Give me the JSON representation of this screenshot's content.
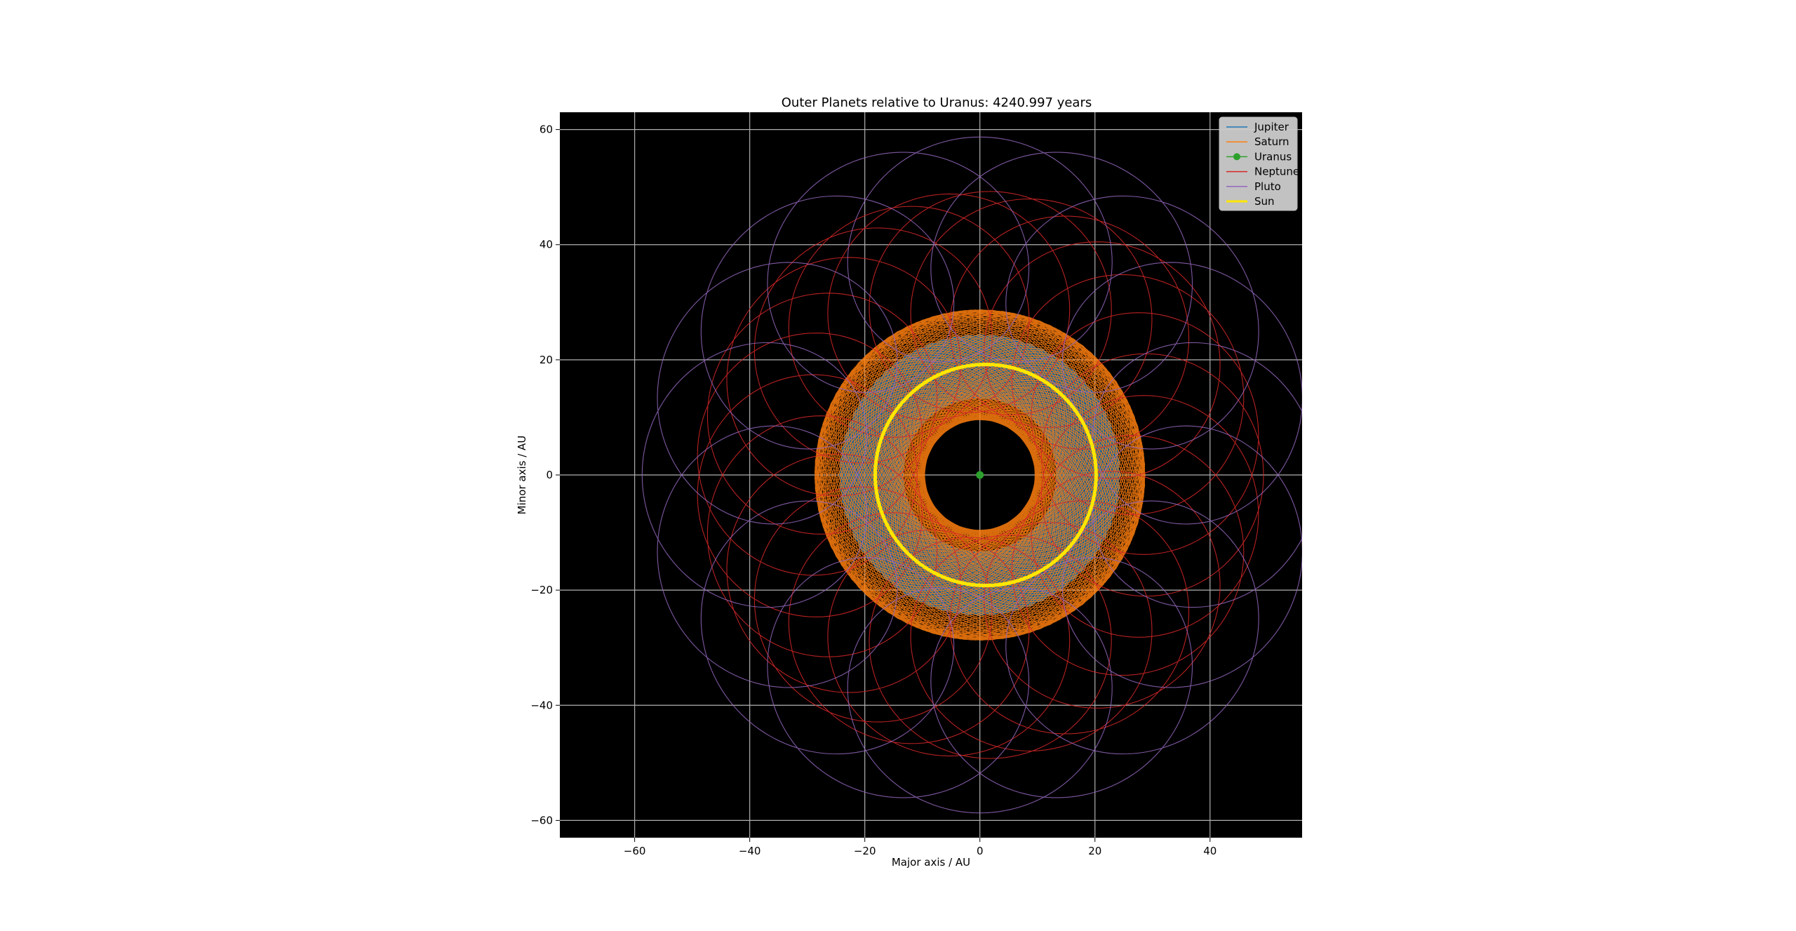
{
  "chart_data": {
    "type": "line",
    "title": "Outer Planets relative to Uranus: 4240.997 years",
    "xlabel": "Major axis / AU",
    "ylabel": "Minor axis / AU",
    "xlim": [
      -73,
      56
    ],
    "ylim": [
      -63,
      63
    ],
    "xticks": [
      -60,
      -40,
      -20,
      0,
      20,
      40
    ],
    "yticks": [
      -60,
      -40,
      -20,
      0,
      20,
      40,
      60
    ],
    "grid": true,
    "plot_background": "#000000",
    "legend_position": "top-right",
    "series": [
      {
        "name": "Jupiter",
        "color": "#1f77b4",
        "kind": "epicycle",
        "center": [
          0,
          0
        ],
        "R": 19.2,
        "r": 5.2,
        "loops": 357,
        "samples": 4200
      },
      {
        "name": "Saturn",
        "color": "#ff7f0e",
        "kind": "epicycle",
        "center": [
          0,
          0
        ],
        "R": 19.2,
        "r": 9.5,
        "loops": 148,
        "samples": 4200
      },
      {
        "name": "Uranus",
        "color": "#2ca02c",
        "kind": "point",
        "x": 0,
        "y": 0
      },
      {
        "name": "Neptune",
        "color": "#d62728",
        "kind": "epicycle",
        "center": [
          0,
          0
        ],
        "R": 19.2,
        "r": 30.1,
        "loops": 26,
        "samples": 2600
      },
      {
        "name": "Pluto",
        "color": "#9467bd",
        "kind": "epicycle",
        "center": [
          0,
          0
        ],
        "R": 19.2,
        "r": 39.5,
        "loops": 17,
        "samples": 2200
      },
      {
        "name": "Sun",
        "color": "#ffe600",
        "kind": "circle",
        "center": [
          1,
          0
        ],
        "radius": 19.2
      }
    ]
  }
}
